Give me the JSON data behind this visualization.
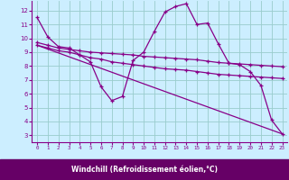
{
  "background_color": "#cceeff",
  "line_color": "#880088",
  "grid_color": "#99cccc",
  "xlabel": "Windchill (Refroidissement éolien,°C)",
  "xlabel_bg": "#660066",
  "xlabel_fg": "#ffffff",
  "xlim": [
    -0.5,
    23.5
  ],
  "ylim": [
    2.5,
    12.7
  ],
  "yticks": [
    3,
    4,
    5,
    6,
    7,
    8,
    9,
    10,
    11,
    12
  ],
  "xticks": [
    0,
    1,
    2,
    3,
    4,
    5,
    6,
    7,
    8,
    9,
    10,
    11,
    12,
    13,
    14,
    15,
    16,
    17,
    18,
    19,
    20,
    21,
    22,
    23
  ],
  "line1_x": [
    0,
    1,
    2,
    3,
    4,
    5,
    6,
    7,
    8,
    9,
    10,
    11,
    12,
    13,
    14,
    15,
    16,
    17,
    18,
    19,
    20,
    21,
    22,
    23
  ],
  "line1_y": [
    11.5,
    10.1,
    9.4,
    9.3,
    8.8,
    8.3,
    6.5,
    5.5,
    5.8,
    8.4,
    9.0,
    10.5,
    11.9,
    12.3,
    12.5,
    11.0,
    11.1,
    9.6,
    8.2,
    8.1,
    7.6,
    6.6,
    4.1,
    3.1
  ],
  "line2_x": [
    0,
    1,
    2,
    3,
    4,
    5,
    6,
    7,
    8,
    9,
    10,
    11,
    12,
    13,
    14,
    15,
    16,
    17,
    18,
    19,
    20,
    21,
    22,
    23
  ],
  "line2_y": [
    9.7,
    9.5,
    9.3,
    9.2,
    9.1,
    9.0,
    8.95,
    8.9,
    8.85,
    8.8,
    8.7,
    8.65,
    8.6,
    8.55,
    8.5,
    8.45,
    8.35,
    8.25,
    8.2,
    8.15,
    8.1,
    8.05,
    8.0,
    7.95
  ],
  "line3_x": [
    0,
    1,
    2,
    3,
    4,
    5,
    6,
    7,
    8,
    9,
    10,
    11,
    12,
    13,
    14,
    15,
    16,
    17,
    18,
    19,
    20,
    21,
    22,
    23
  ],
  "line3_y": [
    9.5,
    9.3,
    9.1,
    9.0,
    8.8,
    8.6,
    8.5,
    8.3,
    8.2,
    8.1,
    8.0,
    7.9,
    7.8,
    7.75,
    7.7,
    7.6,
    7.5,
    7.4,
    7.35,
    7.3,
    7.25,
    7.2,
    7.15,
    7.1
  ],
  "line4_x": [
    0,
    23
  ],
  "line4_y": [
    9.5,
    3.1
  ]
}
